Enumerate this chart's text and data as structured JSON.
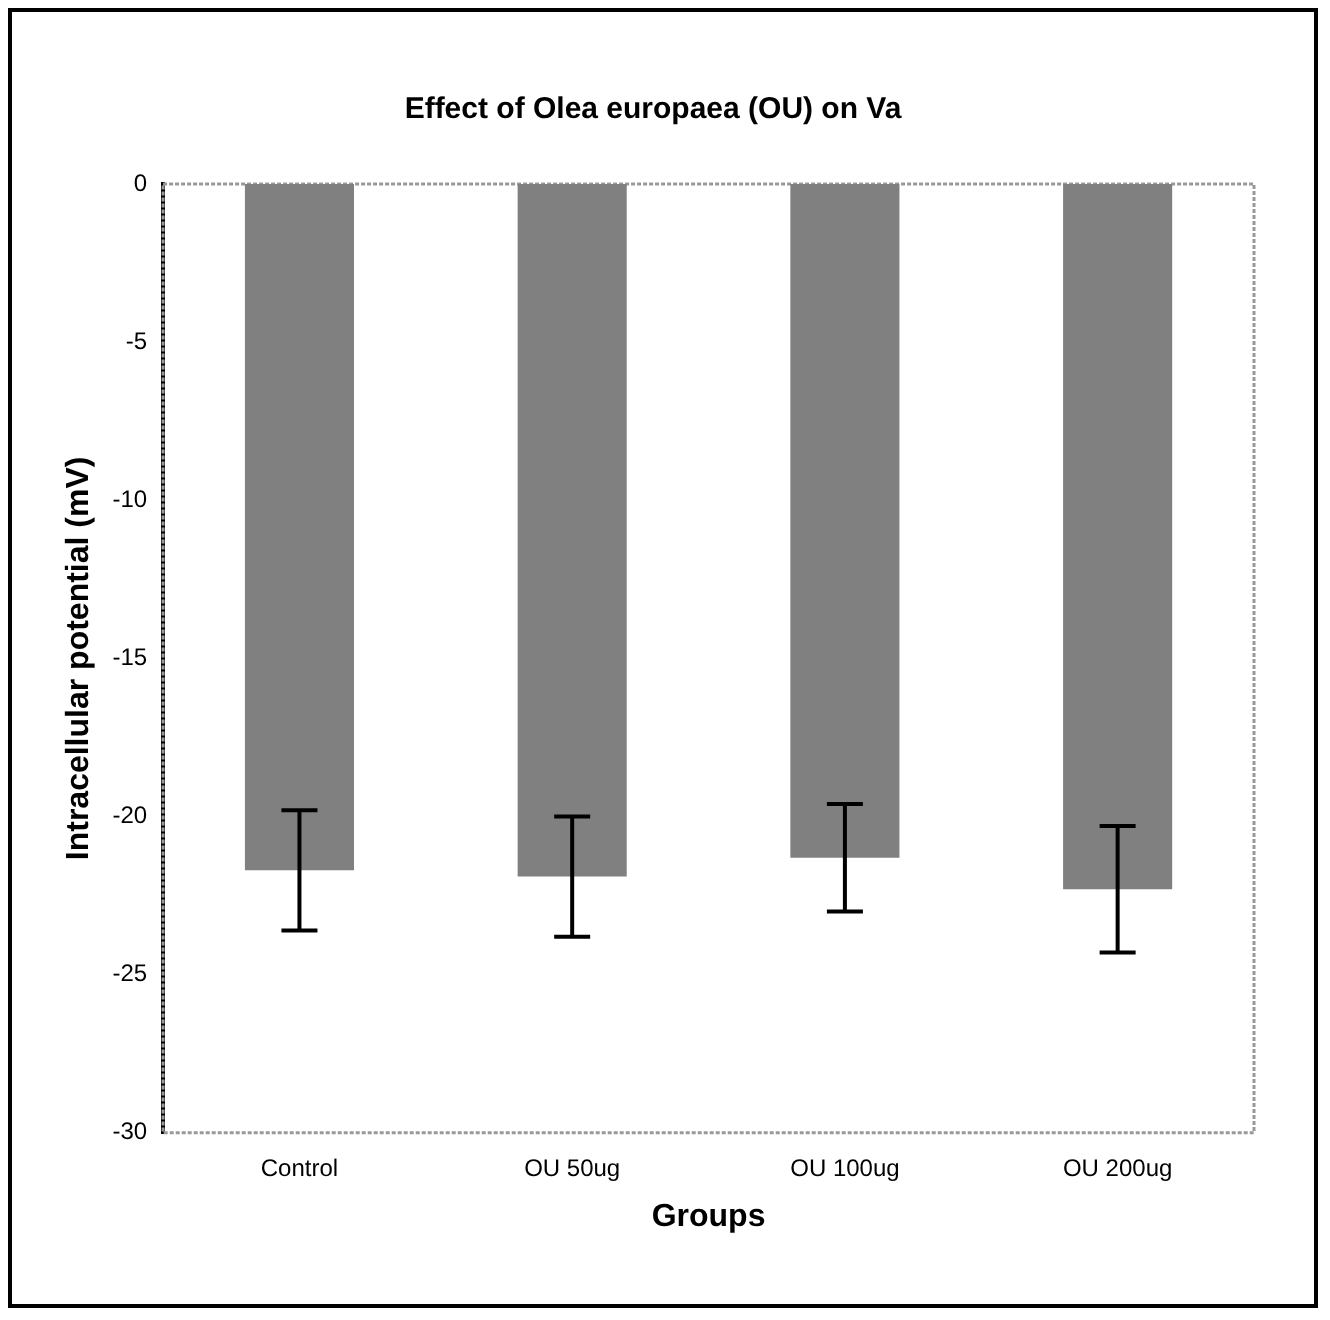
{
  "chart_data": {
    "type": "bar",
    "title": "Effect of Olea europaea (OU) on Va",
    "xlabel": "Groups",
    "ylabel": "Intracellular potential (mV)",
    "categories": [
      "Control",
      "OU 50ug",
      "OU 100ug",
      "OU 200ug"
    ],
    "values": [
      -21.7,
      -21.9,
      -21.3,
      -22.3
    ],
    "errors": [
      1.9,
      1.9,
      1.7,
      2.0
    ],
    "color": "#808080",
    "ylim": [
      -30,
      0
    ],
    "yticks": [
      0,
      -5,
      -10,
      -15,
      -20,
      -25,
      -30
    ],
    "grid": false,
    "legend": false
  }
}
